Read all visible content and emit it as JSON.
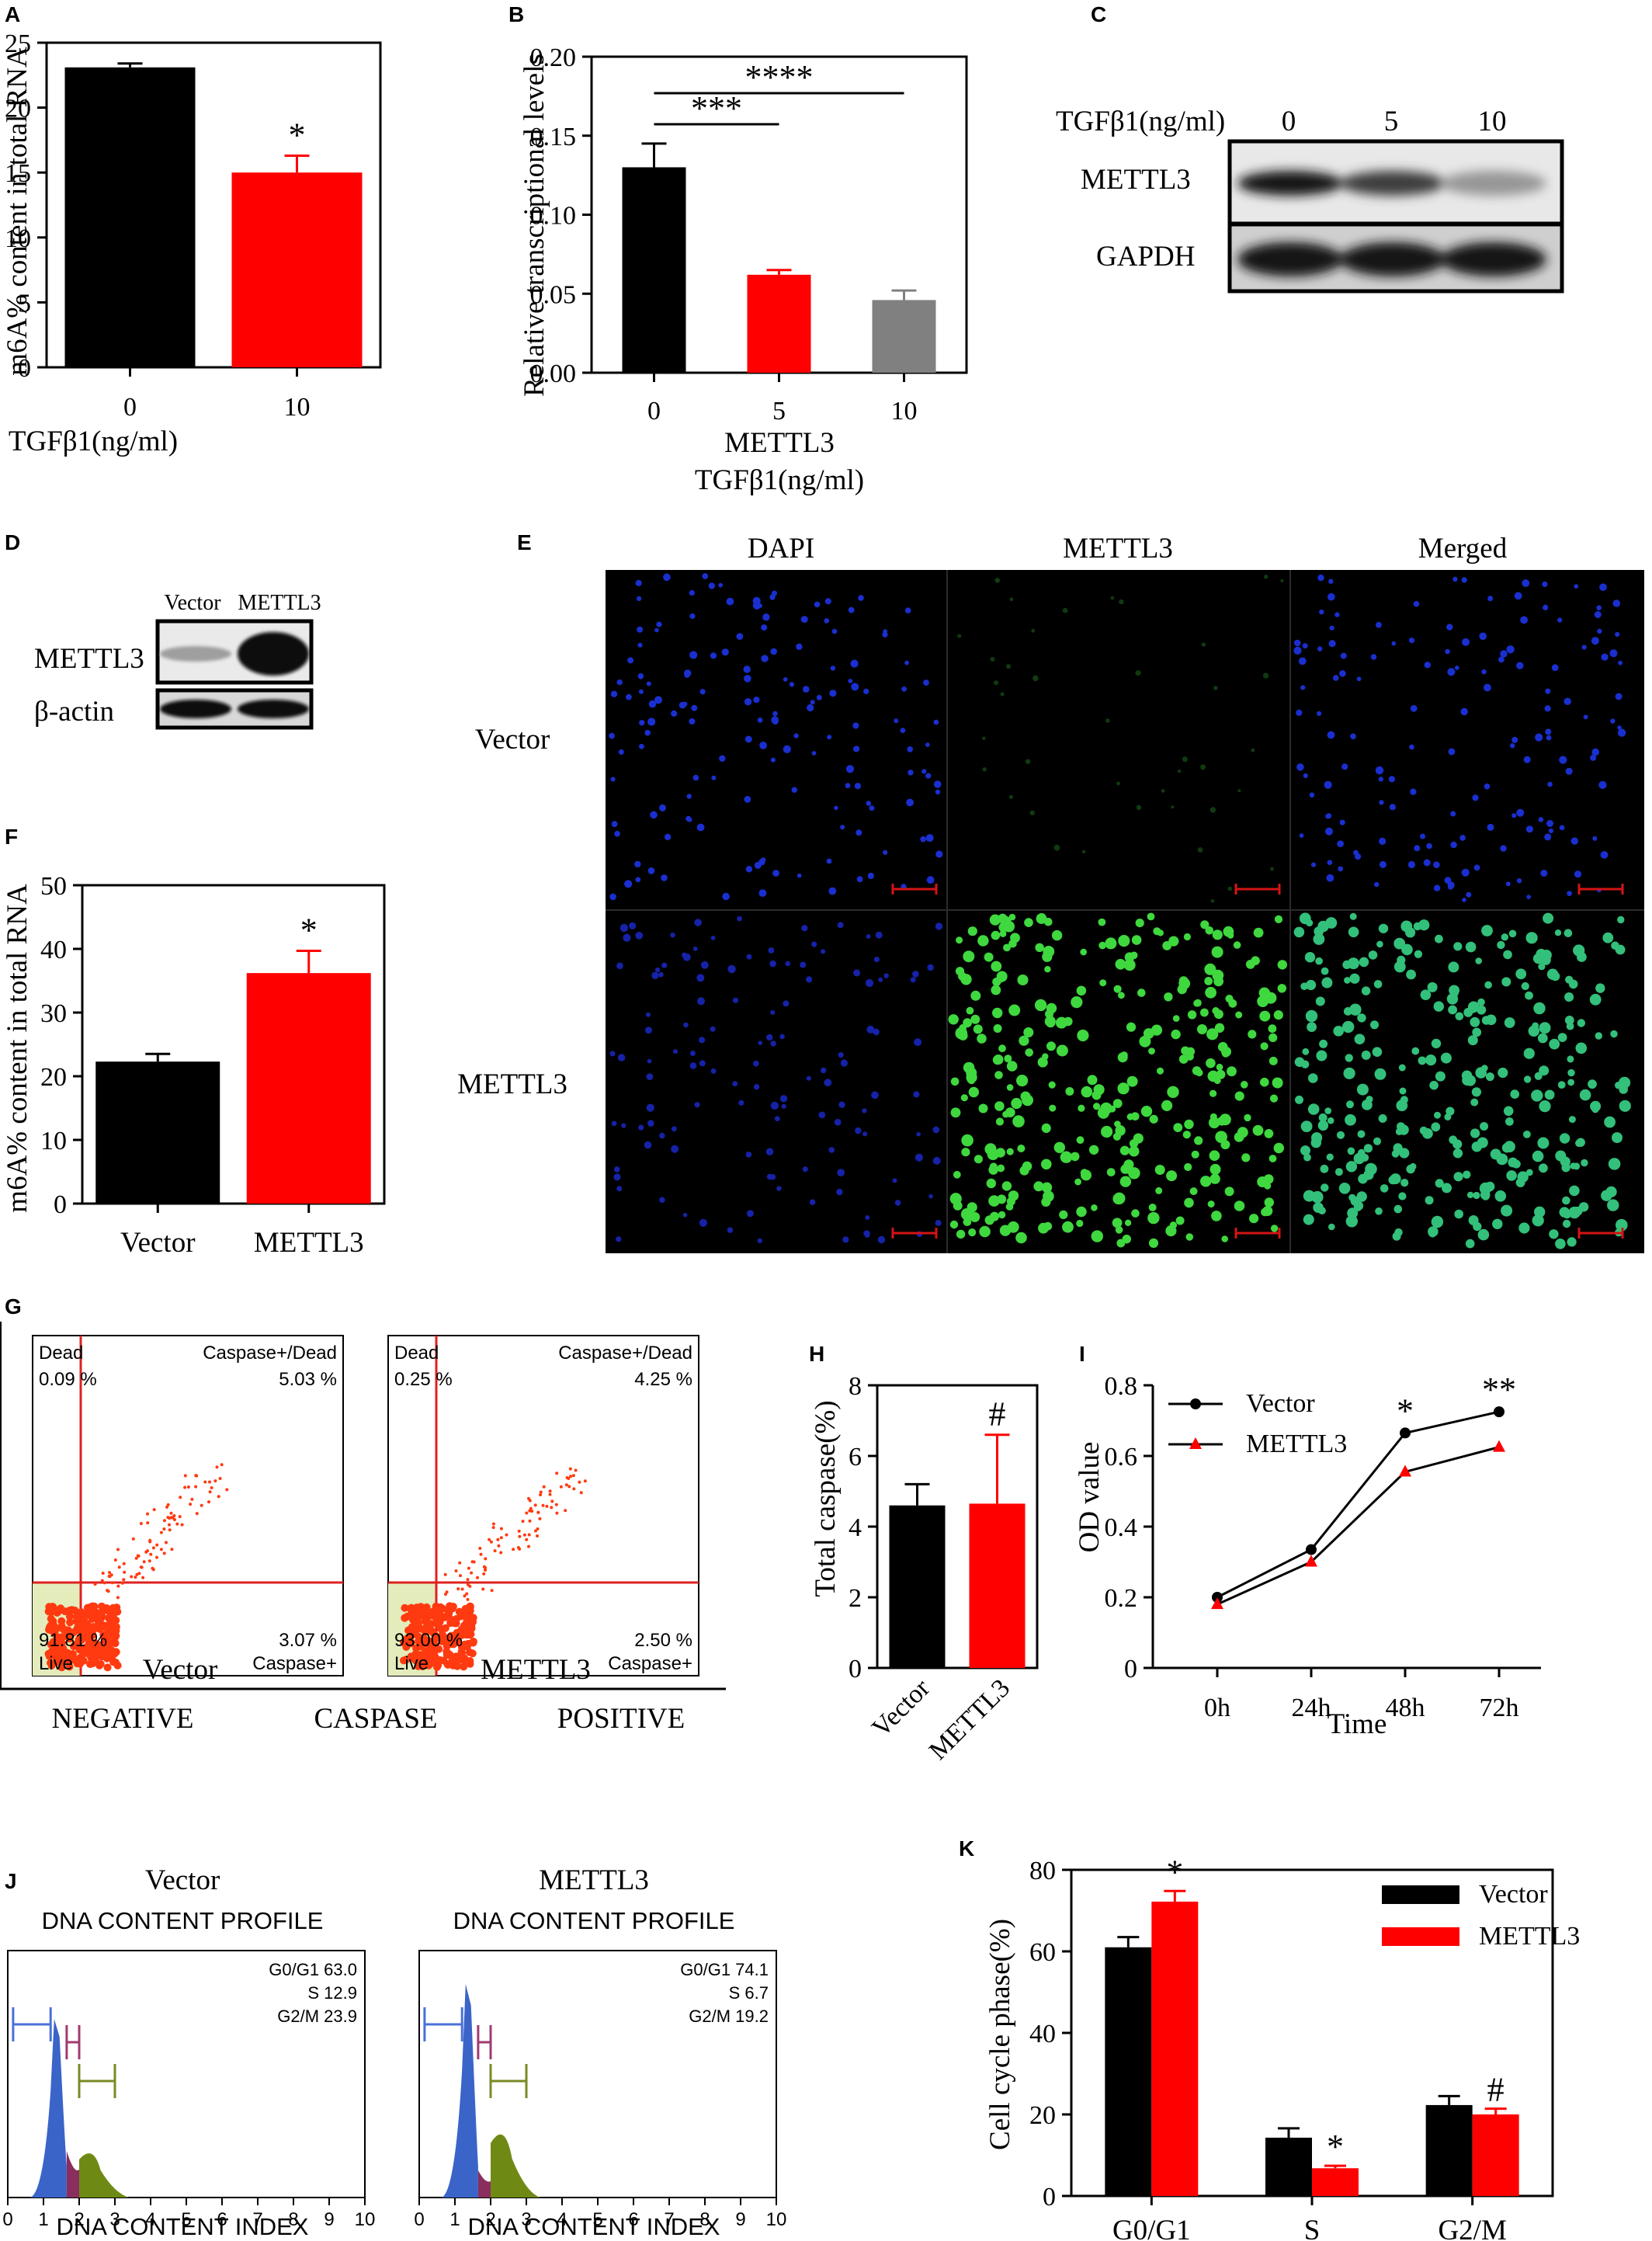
{
  "panels": {
    "A": {
      "letter": "A",
      "chart_data": {
        "type": "bar",
        "categories": [
          "0",
          "10"
        ],
        "values": [
          23.1,
          15.0
        ],
        "errors": [
          0.3,
          1.3
        ],
        "colors": [
          "#000000",
          "#ff0000"
        ],
        "significance": [
          "",
          "*"
        ],
        "xlabel": "TGFβ1(ng/ml)",
        "ylabel": "m6A% content in total RNA",
        "ylim": [
          0,
          25
        ],
        "yticks": [
          0,
          5,
          10,
          15,
          20,
          25
        ],
        "grid": false
      }
    },
    "B": {
      "letter": "B",
      "chart_data": {
        "type": "bar",
        "categories": [
          "0",
          "5",
          "10"
        ],
        "values": [
          0.13,
          0.062,
          0.046
        ],
        "errors": [
          0.015,
          0.003,
          0.006
        ],
        "colors": [
          "#000000",
          "#ff0000",
          "#808080"
        ],
        "significance": [],
        "brackets": [
          {
            "from": "0",
            "to": "5",
            "label": "***"
          },
          {
            "from": "0",
            "to": "10",
            "label": "****"
          }
        ],
        "xlabel": "METTL3",
        "xlabel2": "TGFβ1(ng/ml)",
        "ylabel": "Relative transcriptional levels",
        "ylim": [
          0,
          0.2
        ],
        "yticks": [
          "0.00",
          "0.05",
          "0.10",
          "0.15",
          "0.20"
        ],
        "grid": false
      }
    },
    "C": {
      "letter": "C",
      "header": "TGFβ1(ng/ml)",
      "lanes": [
        "0",
        "5",
        "10"
      ],
      "rows": [
        {
          "label": "METTL3",
          "band_intensity": [
            1.0,
            0.8,
            0.35
          ]
        },
        {
          "label": "GAPDH",
          "band_intensity": [
            1.0,
            1.0,
            1.0
          ]
        }
      ]
    },
    "D": {
      "letter": "D",
      "lanes": [
        "Vector",
        "METTL3"
      ],
      "rows": [
        {
          "label": "METTL3",
          "band_intensity": [
            0.3,
            1.0
          ]
        },
        {
          "label": "β-actin",
          "band_intensity": [
            1.0,
            1.0
          ]
        }
      ]
    },
    "E": {
      "letter": "E",
      "columns": [
        "DAPI",
        "METTL3",
        "Merged"
      ],
      "rows": [
        "Vector",
        "METTL3"
      ]
    },
    "F": {
      "letter": "F",
      "chart_data": {
        "type": "bar",
        "categories": [
          "Vector",
          "METTL3"
        ],
        "values": [
          22.3,
          36.2
        ],
        "errors": [
          1.2,
          3.5
        ],
        "colors": [
          "#000000",
          "#ff0000"
        ],
        "significance": [
          "",
          "*"
        ],
        "xlabel": "",
        "ylabel": "m6A% content in total RNA",
        "ylim": [
          0,
          50
        ],
        "yticks": [
          0,
          10,
          20,
          30,
          40,
          50
        ],
        "grid": false
      }
    },
    "G": {
      "letter": "G",
      "plots": [
        {
          "title": "Vector",
          "q_dead": "Dead",
          "v_dead": "0.09 %",
          "q_cd": "Caspase+/Dead",
          "v_cd": "5.03 %",
          "v_live": "91.81 %",
          "q_live": "Live",
          "v_casp": "3.07 %",
          "q_casp": "Caspase+"
        },
        {
          "title": "METTL3",
          "q_dead": "Dead",
          "v_dead": "0.25 %",
          "q_cd": "Caspase+/Dead",
          "v_cd": "4.25 %",
          "v_live": "93.00 %",
          "q_live": "Live",
          "v_casp": "2.50 %",
          "q_casp": "Caspase+"
        }
      ],
      "axis_words": [
        "NEGATIVE",
        "CASPASE",
        "POSITIVE"
      ]
    },
    "H": {
      "letter": "H",
      "chart_data": {
        "type": "bar",
        "categories": [
          "Vector",
          "METTL3"
        ],
        "values": [
          4.6,
          4.65
        ],
        "errors": [
          0.6,
          1.95
        ],
        "colors": [
          "#000000",
          "#ff0000"
        ],
        "significance": [
          "",
          "#"
        ],
        "xlabel": "",
        "ylabel": "Total caspase(%)",
        "ylim": [
          0,
          8
        ],
        "yticks": [
          0,
          2,
          4,
          6,
          8
        ],
        "grid": false
      }
    },
    "I": {
      "letter": "I",
      "chart_data": {
        "type": "line",
        "x": [
          "0h",
          "24h",
          "48h",
          "72h"
        ],
        "series": [
          {
            "name": "Vector",
            "values": [
              0.2,
              0.335,
              0.665,
              0.725
            ],
            "color": "#000000",
            "marker": "circle"
          },
          {
            "name": "METTL3",
            "values": [
              0.18,
              0.3,
              0.555,
              0.625
            ],
            "color": "#ff0000",
            "marker": "triangle"
          }
        ],
        "significance": [
          "",
          "",
          "*",
          "**"
        ],
        "xlabel": "Time",
        "ylabel": "OD value",
        "ylim": [
          0,
          0.8
        ],
        "yticks": [
          "0",
          "0.2",
          "0.4",
          "0.6",
          "0.8"
        ],
        "legend": "top-left",
        "grid": false
      }
    },
    "J": {
      "letter": "J",
      "plots": [
        {
          "title": "Vector",
          "header": "DNA CONTENT PROFILE",
          "stats": [
            "G0/G1 63.0",
            "S 12.9",
            "G2/M 23.9"
          ],
          "footer": "DNA CONTENT INDEX"
        },
        {
          "title": "METTL3",
          "header": "DNA CONTENT PROFILE",
          "stats": [
            "G0/G1 74.1",
            "S 6.7",
            "G2/M 19.2"
          ],
          "footer": "DNA CONTENT INDEX"
        }
      ],
      "xticks": [
        "0",
        "1",
        "2",
        "3",
        "4",
        "5",
        "6",
        "7",
        "8",
        "9",
        "10"
      ]
    },
    "K": {
      "letter": "K",
      "chart_data": {
        "type": "bar",
        "categories": [
          "G0/G1",
          "S",
          "G2/M"
        ],
        "series": [
          {
            "name": "Vector",
            "values": [
              61,
              14.3,
              22.3
            ],
            "errors": [
              2.5,
              2.3,
              2.2
            ],
            "color": "#000000"
          },
          {
            "name": "METTL3",
            "values": [
              72.2,
              6.8,
              20
            ],
            "errors": [
              2.6,
              0.6,
              1.4
            ],
            "color": "#ff0000"
          }
        ],
        "significance": [
          [
            "",
            "*"
          ],
          [
            "",
            "*"
          ],
          [
            "",
            "#"
          ]
        ],
        "xlabel": "",
        "ylabel": "Cell cycle phase(%)",
        "ylim": [
          0,
          80
        ],
        "yticks": [
          0,
          20,
          40,
          60,
          80
        ],
        "legend": "top-right",
        "grid": false
      }
    }
  }
}
